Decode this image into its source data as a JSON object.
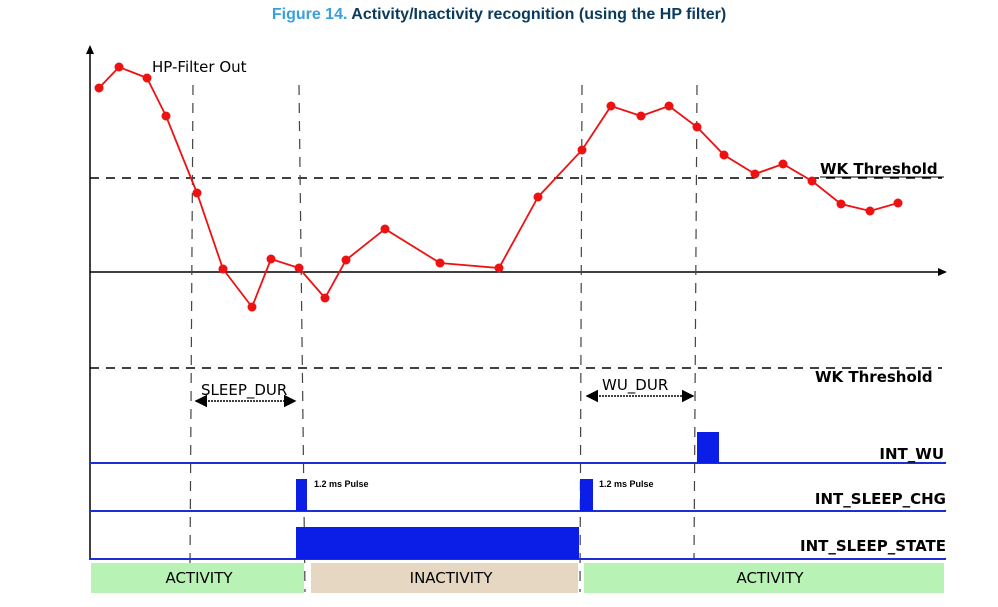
{
  "title": {
    "number": "Figure 14.",
    "text": "Activity/Inactivity recognition (using the HP filter)"
  },
  "signal": {
    "label": "HP-Filter Out",
    "color": "#ee1111",
    "points": [
      [
        99,
        88
      ],
      [
        119,
        67
      ],
      [
        147,
        78
      ],
      [
        166,
        116
      ],
      [
        197,
        193
      ],
      [
        223,
        269
      ],
      [
        252,
        307
      ],
      [
        271,
        259
      ],
      [
        299,
        268
      ],
      [
        325,
        298
      ],
      [
        346,
        260
      ],
      [
        385,
        229
      ],
      [
        440,
        263
      ],
      [
        499,
        268
      ],
      [
        538,
        197
      ],
      [
        582,
        150
      ],
      [
        611,
        106
      ],
      [
        641,
        116
      ],
      [
        669,
        106
      ],
      [
        697,
        127
      ],
      [
        724,
        155
      ],
      [
        755,
        174
      ],
      [
        783,
        164
      ],
      [
        812,
        181
      ],
      [
        841,
        204
      ],
      [
        870,
        211
      ],
      [
        898,
        203
      ]
    ]
  },
  "thresholds": {
    "upper_label": "WK Threshold",
    "lower_label": "WK Threshold"
  },
  "durations": {
    "sleep_dur": "SLEEP_DUR",
    "wu_dur": "WU_DUR"
  },
  "signals": {
    "int_wu": "INT_WU",
    "int_sleep_chg": "INT_SLEEP_CHG",
    "int_sleep_state": "INT_SLEEP_STATE",
    "pulse_note_1": "1.2 ms Pulse",
    "pulse_note_2": "1.2 ms Pulse",
    "line_color": "#1a2fd6",
    "fill_color": "#0a1ee8"
  },
  "bands": {
    "left": "ACTIVITY",
    "middle": "INACTIVITY",
    "right": "ACTIVITY",
    "activity_color": "#b8f2b4",
    "inactivity_color": "#e5d7c2"
  }
}
